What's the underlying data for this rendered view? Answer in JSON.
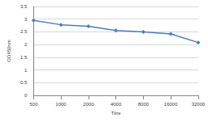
{
  "chart_data": {
    "type": "line",
    "x_label": "Titre",
    "y_label": "OD450nm",
    "categories": [
      "500",
      "1000",
      "2000",
      "4000",
      "8000",
      "16000",
      "32000"
    ],
    "values": [
      2.95,
      2.78,
      2.72,
      2.55,
      2.5,
      2.42,
      2.08
    ],
    "color": "#4a7ebb",
    "marker": "diamond",
    "ylim": [
      0,
      3.5
    ],
    "yticks": [
      0,
      0.5,
      1,
      1.5,
      2,
      2.5,
      3,
      3.5
    ],
    "grid": true
  }
}
